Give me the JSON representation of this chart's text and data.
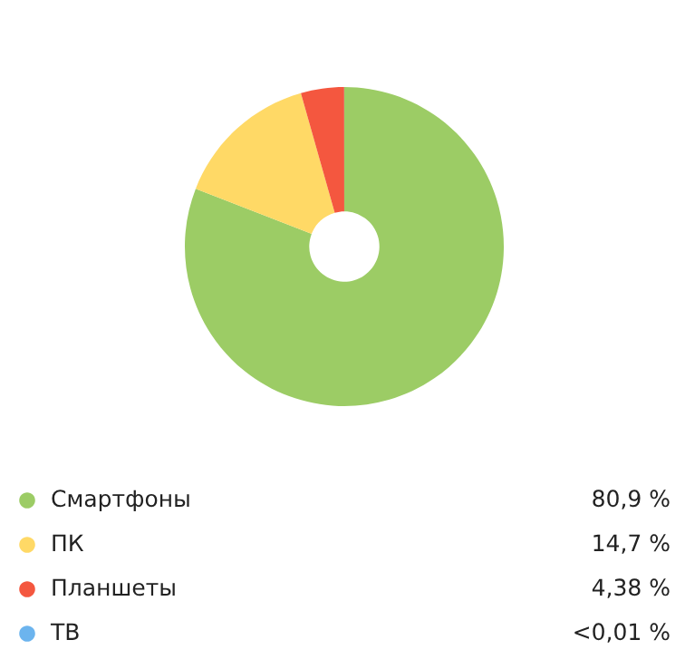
{
  "chart_data": {
    "type": "donut",
    "categories": [
      "Смартфоны",
      "ПК",
      "Планшеты",
      "ТВ"
    ],
    "values": [
      80.9,
      14.7,
      4.38,
      0.01
    ],
    "value_labels": [
      "80,9 %",
      "14,7 %",
      "4,38 %",
      "<0,01 %"
    ],
    "colors": [
      "#9ccc65",
      "#ffd966",
      "#f4573f",
      "#6cb4ee"
    ],
    "legend": "bottom"
  }
}
